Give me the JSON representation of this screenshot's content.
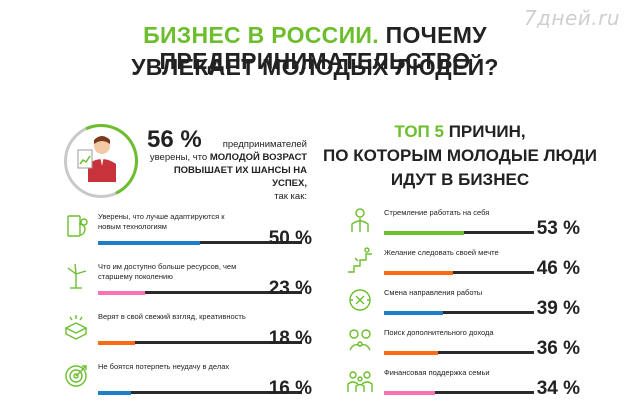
{
  "watermark": "7дней.ru",
  "title": {
    "line1_green": "БИЗНЕС В РОССИИ.",
    "line1_black": "ПОЧЕМУ ПРЕДПРИНИМАТЕЛЬСТВО",
    "line2": "УВЛЕКАЕТ МОЛОДЫХ ЛЮДЕЙ?"
  },
  "left_stat": {
    "percent": "56 %",
    "text_a": "предпринимателей",
    "text_b": "уверены, что",
    "text_bold_1": "МОЛОДОЙ ВОЗРАСТ",
    "text_bold_2": "ПОВЫШАЕТ ИХ ШАНСЫ НА УСПЕХ,",
    "text_c": "так как:"
  },
  "right_heading": {
    "green": "ТОП 5",
    "rest1": "ПРИЧИН,",
    "line2": "ПО КОТОРЫМ МОЛОДЫЕ ЛЮДИ",
    "line3": "ИДУТ В БИЗНЕС"
  },
  "chart_data": [
    {
      "type": "bar",
      "categories": [
        "Уверены, что лучше адаптируются к новым технологиям",
        "Что им доступно больше ресурсов, чем старшему поколению",
        "Верят в свой свежий взгляд, креативность",
        "Не боятся потерпеть неудачу в делах"
      ],
      "values": [
        50,
        23,
        18,
        16
      ],
      "labels": [
        "50 %",
        "23 %",
        "18 %",
        "16 %"
      ],
      "colors": [
        "#1e7fc9",
        "#ff6fb3",
        "#ff6a13",
        "#1e7fc9"
      ],
      "icons": [
        "touch-device-icon",
        "wind-turbine-icon",
        "idea-box-icon",
        "target-icon"
      ],
      "ylim": [
        0,
        100
      ]
    },
    {
      "type": "bar",
      "categories": [
        "Стремление работать на себя",
        "Желание следовать своей мечте",
        "Смена направления работы",
        "Поиск дополнительного дохода",
        "Финансовая поддержка семьи"
      ],
      "values": [
        53,
        46,
        39,
        36,
        34
      ],
      "labels": [
        "53 %",
        "46 %",
        "39 %",
        "36 %",
        "34 %"
      ],
      "colors": [
        "#6cbe2d",
        "#ff6a13",
        "#1e7fc9",
        "#ff6a13",
        "#ff6fb3"
      ],
      "icons": [
        "person-icon",
        "stairs-icon",
        "direction-arrows-icon",
        "handshake-coin-icon",
        "family-icon"
      ],
      "ylim": [
        0,
        100
      ]
    }
  ]
}
